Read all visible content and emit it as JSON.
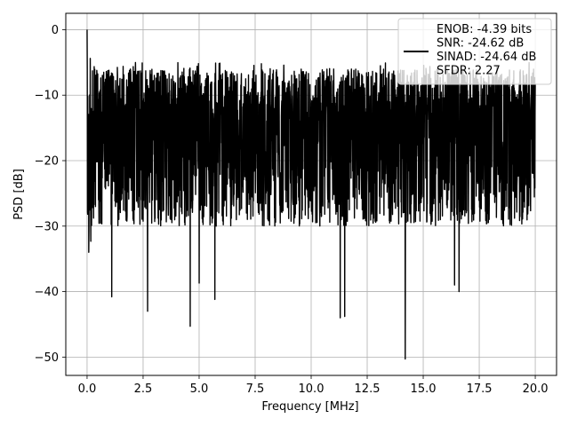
{
  "chart_data": {
    "type": "line",
    "title": "",
    "xlabel": "Frequency [MHz]",
    "ylabel": "PSD [dB]",
    "xlim": [
      -0.95,
      20.95
    ],
    "ylim": [
      -52.8,
      2.5
    ],
    "xticks": [
      0.0,
      2.5,
      5.0,
      7.5,
      10.0,
      12.5,
      15.0,
      17.5,
      20.0
    ],
    "xtick_labels": [
      "0.0",
      "2.5",
      "5.0",
      "7.5",
      "10.0",
      "12.5",
      "15.0",
      "17.5",
      "20.0"
    ],
    "yticks": [
      0,
      -10,
      -20,
      -30,
      -40,
      -50
    ],
    "ytick_labels": [
      "0",
      "−10",
      "−20",
      "−30",
      "−40",
      "−50"
    ],
    "grid": true,
    "legend_position": "top-right",
    "series": [
      {
        "name": "ENOB: -4.39 bits\nSNR: -24.62 dB\nSINAD: -24.64 dB\nSFDR: 2.27",
        "color": "#000000",
        "x_range": [
          0.0,
          20.0
        ],
        "description_level": "noise floor roughly -8 to -30 dB with spikes",
        "peak": {
          "x": 0.0,
          "y": 0.0
        },
        "notable_dips": [
          {
            "x": 0.2,
            "y": -36
          },
          {
            "x": 1.1,
            "y": -40.8
          },
          {
            "x": 2.7,
            "y": -43
          },
          {
            "x": 4.6,
            "y": -45.3
          },
          {
            "x": 5.0,
            "y": -38.7
          },
          {
            "x": 5.7,
            "y": -41.2
          },
          {
            "x": 11.3,
            "y": -44
          },
          {
            "x": 11.5,
            "y": -43.8
          },
          {
            "x": 14.2,
            "y": -50.3
          },
          {
            "x": 16.4,
            "y": -39
          },
          {
            "x": 16.6,
            "y": -40
          }
        ],
        "upper_envelope_dB": -6,
        "lower_envelope_dB": -30
      }
    ]
  }
}
